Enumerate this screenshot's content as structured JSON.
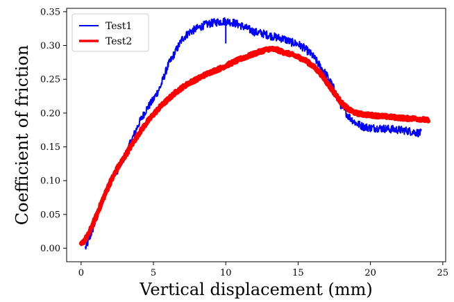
{
  "chart_data": {
    "type": "line",
    "title": "",
    "xlabel": "Vertical displacement (mm)",
    "ylabel": "Coefficient of friction",
    "xlim": [
      -1.0,
      25.2
    ],
    "ylim": [
      -0.02,
      0.355
    ],
    "xticks": [
      0,
      5,
      10,
      15,
      20,
      25
    ],
    "yticks": [
      0.0,
      0.05,
      0.1,
      0.15,
      0.2,
      0.25,
      0.3,
      0.35
    ],
    "xtick_labels": [
      "0",
      "5",
      "10",
      "15",
      "20",
      "25"
    ],
    "ytick_labels": [
      "0.00",
      "0.05",
      "0.10",
      "0.15",
      "0.20",
      "0.25",
      "0.30",
      "0.35"
    ],
    "grid": false,
    "legend_position": "upper-left",
    "series": [
      {
        "name": "Test1",
        "color": "#0000ff",
        "line_width": 2,
        "noise": 0.006,
        "x": [
          0.3,
          0.5,
          1.0,
          1.5,
          2.0,
          2.5,
          3.0,
          3.5,
          4.0,
          4.5,
          5.0,
          5.5,
          6.0,
          6.5,
          7.0,
          7.5,
          8.0,
          8.5,
          9.0,
          9.5,
          10.0,
          10.5,
          11.0,
          11.5,
          12.0,
          12.5,
          13.0,
          13.5,
          14.0,
          14.5,
          15.0,
          15.5,
          16.0,
          16.5,
          17.0,
          17.5,
          18.0,
          18.5,
          19.0,
          19.5,
          20.0,
          20.5,
          21.0,
          21.5,
          22.0,
          22.5,
          23.0,
          23.5
        ],
        "y": [
          0.0,
          0.01,
          0.04,
          0.07,
          0.1,
          0.115,
          0.135,
          0.16,
          0.185,
          0.205,
          0.22,
          0.24,
          0.27,
          0.29,
          0.31,
          0.32,
          0.325,
          0.33,
          0.333,
          0.335,
          0.336,
          0.334,
          0.33,
          0.325,
          0.32,
          0.318,
          0.315,
          0.312,
          0.31,
          0.305,
          0.302,
          0.295,
          0.285,
          0.27,
          0.255,
          0.235,
          0.21,
          0.195,
          0.185,
          0.18,
          0.178,
          0.178,
          0.177,
          0.176,
          0.175,
          0.174,
          0.172,
          0.17
        ]
      },
      {
        "name": "Test2",
        "color": "#ff0000",
        "line_width": 6,
        "noise": 0.0025,
        "x": [
          0.0,
          0.5,
          1.0,
          1.5,
          2.0,
          2.5,
          3.0,
          3.5,
          4.0,
          4.5,
          5.0,
          5.5,
          6.0,
          6.5,
          7.0,
          7.5,
          8.0,
          8.5,
          9.0,
          9.5,
          10.0,
          10.5,
          11.0,
          11.5,
          12.0,
          12.5,
          13.0,
          13.5,
          14.0,
          14.5,
          15.0,
          15.5,
          16.0,
          16.5,
          17.0,
          17.5,
          18.0,
          18.5,
          19.0,
          19.5,
          20.0,
          20.5,
          21.0,
          21.5,
          22.0,
          22.5,
          23.0,
          23.5,
          24.0
        ],
        "y": [
          0.005,
          0.02,
          0.045,
          0.072,
          0.097,
          0.118,
          0.135,
          0.153,
          0.17,
          0.185,
          0.198,
          0.21,
          0.22,
          0.23,
          0.238,
          0.245,
          0.25,
          0.256,
          0.261,
          0.265,
          0.27,
          0.275,
          0.28,
          0.284,
          0.288,
          0.292,
          0.295,
          0.294,
          0.29,
          0.287,
          0.283,
          0.278,
          0.27,
          0.26,
          0.245,
          0.23,
          0.215,
          0.205,
          0.2,
          0.198,
          0.197,
          0.196,
          0.195,
          0.194,
          0.193,
          0.192,
          0.192,
          0.191,
          0.189
        ]
      }
    ],
    "annotations": [
      {
        "series": "Test1",
        "x": 10.0,
        "y_from": 0.338,
        "y_to": 0.303,
        "kind": "spike"
      }
    ]
  }
}
